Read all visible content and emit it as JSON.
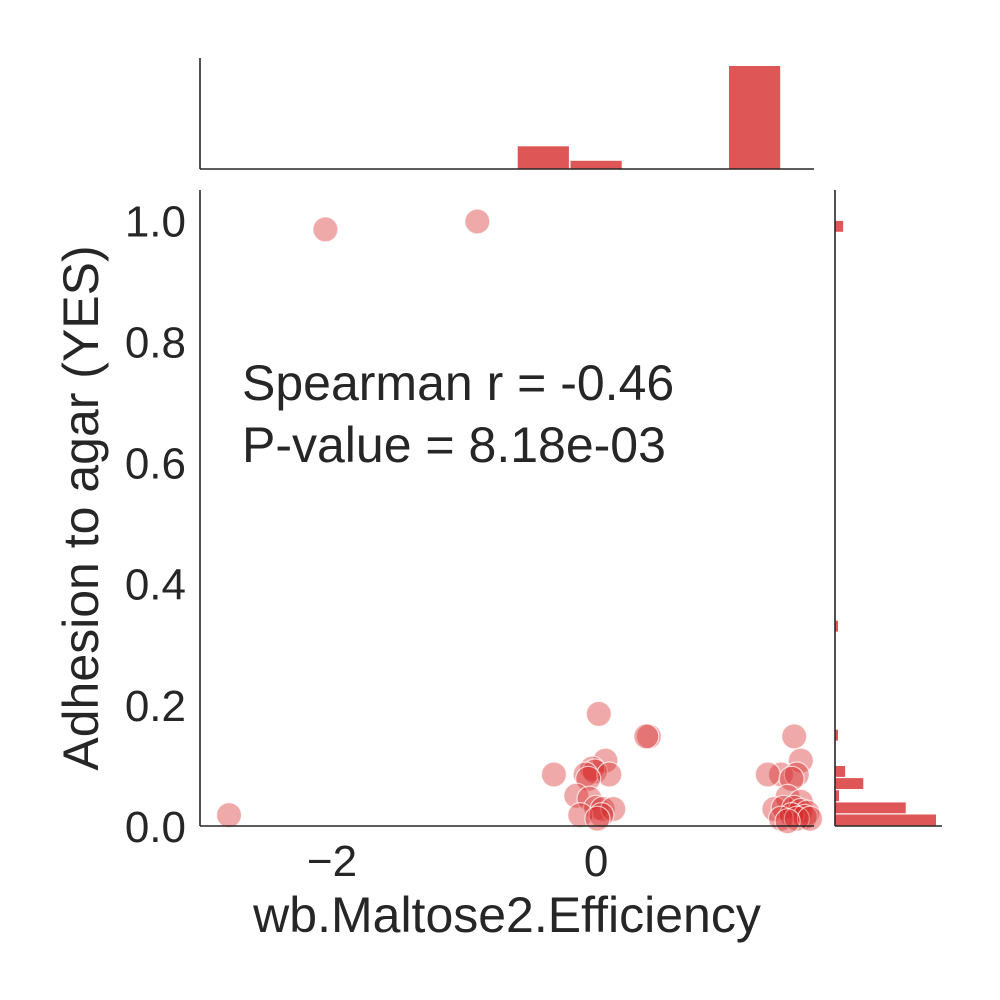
{
  "chart_data": {
    "type": "scatter",
    "title": "",
    "xlabel": "wb.Maltose2.Efficiency",
    "ylabel": "Adhesion to agar (YES)",
    "xlim": [
      -3.0,
      1.65
    ],
    "ylim": [
      0.0,
      1.05
    ],
    "xticks": [
      {
        "value": -2,
        "label": "−2"
      },
      {
        "value": 0,
        "label": "0"
      }
    ],
    "yticks": [
      {
        "value": 0.0,
        "label": "0.0"
      },
      {
        "value": 0.2,
        "label": "0.2"
      },
      {
        "value": 0.4,
        "label": "0.4"
      },
      {
        "value": 0.6,
        "label": "0.6"
      },
      {
        "value": 0.8,
        "label": "0.8"
      },
      {
        "value": 1.0,
        "label": "1.0"
      }
    ],
    "annotation": [
      "Spearman r = -0.46",
      "P-value = 8.18e-03"
    ],
    "grid": false,
    "color": "#d62728",
    "points": [
      {
        "x": -2.05,
        "y": 0.985
      },
      {
        "x": -0.9,
        "y": 0.998
      },
      {
        "x": -2.78,
        "y": 0.018
      },
      {
        "x": 0.02,
        "y": 0.185
      },
      {
        "x": 0.4,
        "y": 0.148
      },
      {
        "x": 0.38,
        "y": 0.148
      },
      {
        "x": 0.07,
        "y": 0.108
      },
      {
        "x": -0.03,
        "y": 0.095
      },
      {
        "x": -0.01,
        "y": 0.09
      },
      {
        "x": -0.08,
        "y": 0.085
      },
      {
        "x": 0.1,
        "y": 0.085
      },
      {
        "x": -0.32,
        "y": 0.085
      },
      {
        "x": -0.06,
        "y": 0.078
      },
      {
        "x": -0.15,
        "y": 0.05
      },
      {
        "x": -0.05,
        "y": 0.045
      },
      {
        "x": 0.0,
        "y": 0.03
      },
      {
        "x": 0.05,
        "y": 0.028
      },
      {
        "x": 0.13,
        "y": 0.028
      },
      {
        "x": -0.12,
        "y": 0.018
      },
      {
        "x": 0.04,
        "y": 0.018
      },
      {
        "x": 0.01,
        "y": 0.012
      },
      {
        "x": 1.5,
        "y": 0.148
      },
      {
        "x": 1.55,
        "y": 0.108
      },
      {
        "x": 1.4,
        "y": 0.085
      },
      {
        "x": 1.3,
        "y": 0.085
      },
      {
        "x": 1.52,
        "y": 0.085
      },
      {
        "x": 1.48,
        "y": 0.078
      },
      {
        "x": 1.45,
        "y": 0.048
      },
      {
        "x": 1.55,
        "y": 0.04
      },
      {
        "x": 1.35,
        "y": 0.028
      },
      {
        "x": 1.42,
        "y": 0.03
      },
      {
        "x": 1.5,
        "y": 0.03
      },
      {
        "x": 1.55,
        "y": 0.025
      },
      {
        "x": 1.6,
        "y": 0.022
      },
      {
        "x": 1.48,
        "y": 0.018
      },
      {
        "x": 1.58,
        "y": 0.015
      },
      {
        "x": 1.4,
        "y": 0.012
      },
      {
        "x": 1.52,
        "y": 0.012
      },
      {
        "x": 1.62,
        "y": 0.012
      },
      {
        "x": 1.45,
        "y": 0.008
      }
    ],
    "marginal_x_histogram": {
      "bins": [
        {
          "start": -3.0,
          "end": -2.6,
          "count": 0
        },
        {
          "start": -2.6,
          "end": -2.2,
          "count": 0
        },
        {
          "start": -2.2,
          "end": -1.8,
          "count": 0
        },
        {
          "start": -1.8,
          "end": -1.4,
          "count": 0
        },
        {
          "start": -1.4,
          "end": -1.0,
          "count": 0
        },
        {
          "start": -1.0,
          "end": -0.6,
          "count": 0
        },
        {
          "start": -0.6,
          "end": -0.2,
          "count": 0.22
        },
        {
          "start": -0.2,
          "end": 0.2,
          "count": 0.08
        },
        {
          "start": 0.2,
          "end": 0.6,
          "count": 0
        },
        {
          "start": 0.6,
          "end": 1.0,
          "count": 0
        },
        {
          "start": 1.0,
          "end": 1.4,
          "count": 1.0
        }
      ],
      "max": 1.0
    },
    "marginal_y_histogram": {
      "bins": [
        {
          "start": 0.0,
          "end": 0.02,
          "count": 1.0
        },
        {
          "start": 0.02,
          "end": 0.04,
          "count": 0.7
        },
        {
          "start": 0.04,
          "end": 0.06,
          "count": 0.04
        },
        {
          "start": 0.06,
          "end": 0.08,
          "count": 0.28
        },
        {
          "start": 0.08,
          "end": 0.1,
          "count": 0.1
        },
        {
          "start": 0.14,
          "end": 0.16,
          "count": 0.03
        },
        {
          "start": 0.32,
          "end": 0.34,
          "count": 0.03
        },
        {
          "start": 0.98,
          "end": 1.0,
          "count": 0.08
        }
      ],
      "max": 1.0
    }
  }
}
